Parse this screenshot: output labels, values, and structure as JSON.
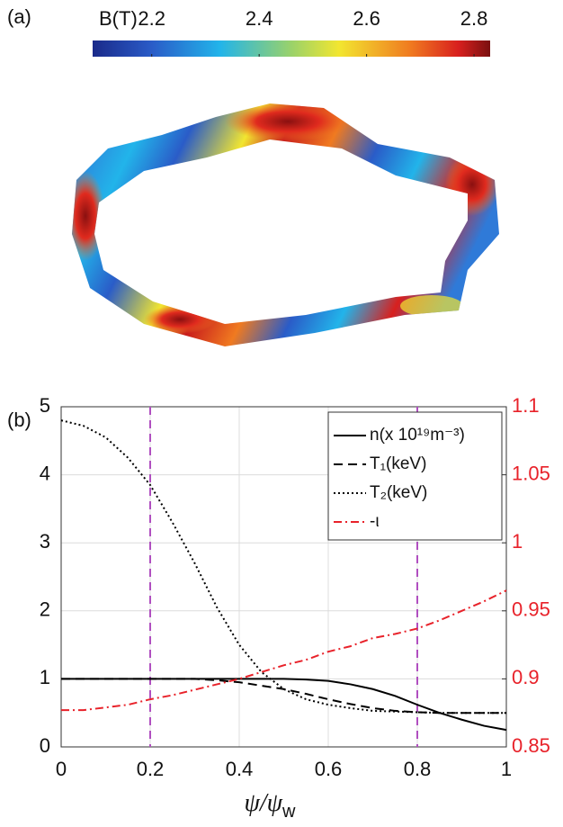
{
  "chart_data": [
    {
      "type": "colorbar",
      "panel_label": "(a)",
      "label": "B(T)",
      "colormap": "jet",
      "xlim": [
        2.09,
        2.83
      ],
      "xticks": [
        2.2,
        2.4,
        2.6,
        2.8
      ]
    },
    {
      "type": "line",
      "panel_label": "(b)",
      "x_label": {
        "main": "ψ/ψ",
        "sub": "w"
      },
      "x": [
        0,
        0.05,
        0.1,
        0.15,
        0.2,
        0.25,
        0.3,
        0.35,
        0.4,
        0.45,
        0.5,
        0.55,
        0.6,
        0.65,
        0.7,
        0.75,
        0.8,
        0.85,
        0.9,
        0.95,
        1
      ],
      "xlim": [
        0,
        1
      ],
      "xticks": [
        0,
        0.2,
        0.4,
        0.6,
        0.8,
        1
      ],
      "ylim": [
        0,
        5
      ],
      "yticks": [
        0,
        1,
        2,
        3,
        4,
        5
      ],
      "y2lim": [
        0.85,
        1.1
      ],
      "y2ticks": [
        0.85,
        0.9,
        0.95,
        1,
        1.05,
        1.1
      ],
      "y2_color": "#e8222a",
      "grid": true,
      "legend": "upper right",
      "vlines": [
        0.2,
        0.8
      ],
      "vline_color": "#b04fc0",
      "series": [
        {
          "name": "n(x 10¹⁹m⁻³)",
          "color": "#000000",
          "dash": "solid",
          "values": [
            1,
            1,
            1,
            1,
            1,
            1,
            1,
            1,
            1,
            1,
            1,
            0.99,
            0.97,
            0.92,
            0.85,
            0.75,
            0.62,
            0.5,
            0.4,
            0.31,
            0.25
          ]
        },
        {
          "name": "T₁(keV)",
          "color": "#000000",
          "dash": "dashed",
          "values": [
            1,
            1,
            1,
            1,
            1,
            1,
            1,
            0.98,
            0.95,
            0.9,
            0.85,
            0.78,
            0.7,
            0.63,
            0.57,
            0.53,
            0.51,
            0.5,
            0.5,
            0.5,
            0.5
          ]
        },
        {
          "name": "T₂(keV)",
          "color": "#000000",
          "dash": "dotted",
          "values": [
            4.8,
            4.72,
            4.55,
            4.25,
            3.85,
            3.3,
            2.7,
            2.05,
            1.5,
            1.1,
            0.85,
            0.7,
            0.62,
            0.57,
            0.53,
            0.52,
            0.51,
            0.5,
            0.5,
            0.5,
            0.5
          ]
        },
        {
          "name": "-ι",
          "color": "#e8222a",
          "dash": "dashdot",
          "axis": "y2",
          "values": [
            0.877,
            0.877,
            0.879,
            0.881,
            0.885,
            0.888,
            0.892,
            0.896,
            0.9,
            0.905,
            0.91,
            0.914,
            0.92,
            0.924,
            0.93,
            0.933,
            0.937,
            0.943,
            0.95,
            0.957,
            0.965
          ]
        }
      ]
    }
  ]
}
